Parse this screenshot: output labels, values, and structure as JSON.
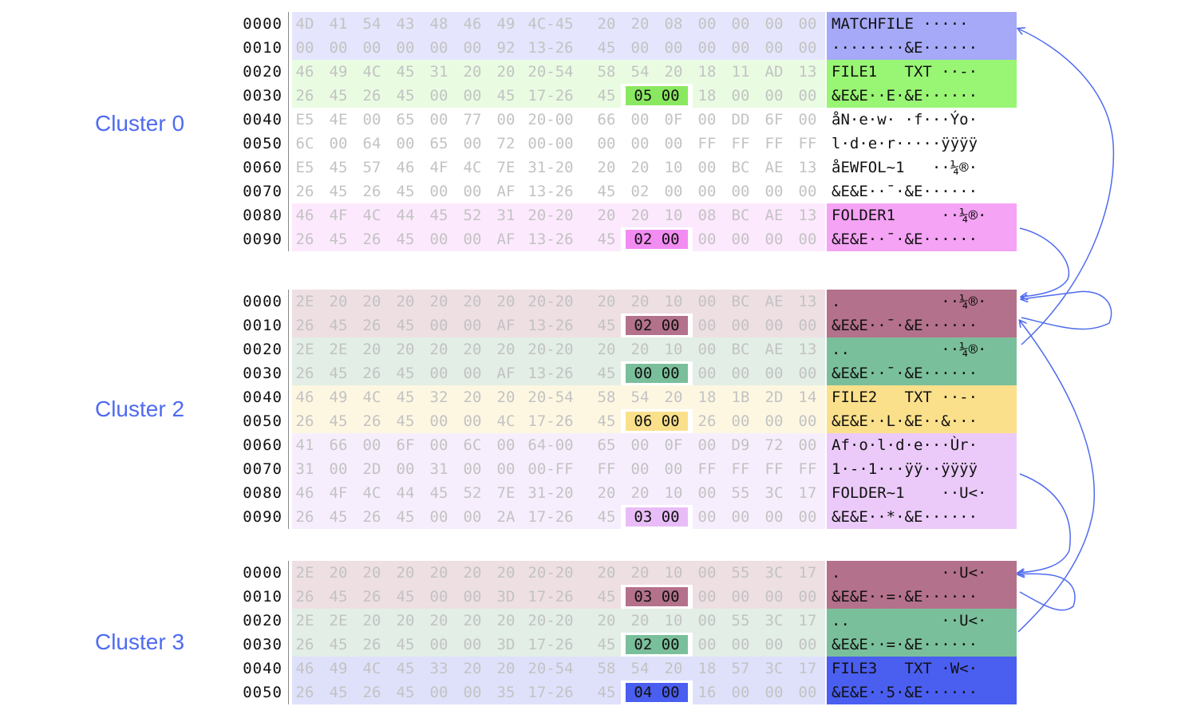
{
  "clusters": [
    {
      "label": "Cluster 0",
      "rows": [
        {
          "off": "0000",
          "hex": [
            "4D",
            "41",
            "54",
            "43",
            "48",
            "46",
            "49",
            "4C-45",
            "20",
            "20",
            "08",
            "00",
            "00",
            "00",
            "00"
          ],
          "ascii": "MATCHFILE ·····",
          "bg": "#e5e6fd",
          "abg": "#a5a9f7"
        },
        {
          "off": "0010",
          "hex": [
            "00",
            "00",
            "00",
            "00",
            "00",
            "00",
            "92",
            "13-26",
            "45",
            "00",
            "00",
            "00",
            "00",
            "00",
            "00"
          ],
          "ascii": "········&E······",
          "bg": "#e5e6fd",
          "abg": "#a5a9f7"
        },
        {
          "off": "0020",
          "hex": [
            "46",
            "49",
            "4C",
            "45",
            "31",
            "20",
            "20",
            "20-54",
            "58",
            "54",
            "20",
            "18",
            "11",
            "AD",
            "13"
          ],
          "ascii": "FILE1   TXT ··-·",
          "bg": "#e9fce2",
          "abg": "#99f574"
        },
        {
          "off": "0030",
          "hex": [
            "26",
            "45",
            "26",
            "45",
            "00",
            "00",
            "45",
            "17-26",
            "45",
            "05",
            "00",
            "18",
            "00",
            "00",
            "00"
          ],
          "ascii": "&E&E··E·&E······",
          "bg": "#e9fce2",
          "abg": "#99f574",
          "hl": {
            "text": "05 00",
            "color": "#8ae860"
          }
        },
        {
          "off": "0040",
          "hex": [
            "E5",
            "4E",
            "00",
            "65",
            "00",
            "77",
            "00",
            "20-00",
            "66",
            "00",
            "0F",
            "00",
            "DD",
            "6F",
            "00"
          ],
          "ascii": "åN·e·w· ·f···Ýo·",
          "bg": "#ffffff",
          "abg": "#ffffff"
        },
        {
          "off": "0050",
          "hex": [
            "6C",
            "00",
            "64",
            "00",
            "65",
            "00",
            "72",
            "00-00",
            "00",
            "00",
            "00",
            "FF",
            "FF",
            "FF",
            "FF"
          ],
          "ascii": "l·d·e·r·····ÿÿÿÿ",
          "bg": "#ffffff",
          "abg": "#ffffff"
        },
        {
          "off": "0060",
          "hex": [
            "E5",
            "45",
            "57",
            "46",
            "4F",
            "4C",
            "7E",
            "31-20",
            "20",
            "20",
            "10",
            "00",
            "BC",
            "AE",
            "13"
          ],
          "ascii": "åEWFOL~1   ··¼®·",
          "bg": "#ffffff",
          "abg": "#ffffff"
        },
        {
          "off": "0070",
          "hex": [
            "26",
            "45",
            "26",
            "45",
            "00",
            "00",
            "AF",
            "13-26",
            "45",
            "02",
            "00",
            "00",
            "00",
            "00",
            "00"
          ],
          "ascii": "&E&E··¯·&E······",
          "bg": "#ffffff",
          "abg": "#ffffff"
        },
        {
          "off": "0080",
          "hex": [
            "46",
            "4F",
            "4C",
            "44",
            "45",
            "52",
            "31",
            "20-20",
            "20",
            "20",
            "10",
            "08",
            "BC",
            "AE",
            "13"
          ],
          "ascii": "FOLDER1     ··¼®·",
          "bg": "#fde9fd",
          "abg": "#f5a3f5"
        },
        {
          "off": "0090",
          "hex": [
            "26",
            "45",
            "26",
            "45",
            "00",
            "00",
            "AF",
            "13-26",
            "45",
            "02",
            "00",
            "00",
            "00",
            "00",
            "00"
          ],
          "ascii": "&E&E··¯·&E······",
          "bg": "#fde9fd",
          "abg": "#f5a3f5",
          "hl": {
            "text": "02 00",
            "color": "#f28cf2"
          }
        }
      ]
    },
    {
      "label": "Cluster 2",
      "rows": [
        {
          "off": "0000",
          "hex": [
            "2E",
            "20",
            "20",
            "20",
            "20",
            "20",
            "20",
            "20-20",
            "20",
            "20",
            "10",
            "00",
            "BC",
            "AE",
            "13"
          ],
          "ascii": ".           ··¼®·",
          "bg": "#eedfe3",
          "abg": "#b4718b"
        },
        {
          "off": "0010",
          "hex": [
            "26",
            "45",
            "26",
            "45",
            "00",
            "00",
            "AF",
            "13-26",
            "45",
            "02",
            "00",
            "00",
            "00",
            "00",
            "00"
          ],
          "ascii": "&E&E··¯·&E······",
          "bg": "#eedfe3",
          "abg": "#b4718b",
          "hl": {
            "text": "02 00",
            "color": "#b4718b"
          }
        },
        {
          "off": "0020",
          "hex": [
            "2E",
            "2E",
            "20",
            "20",
            "20",
            "20",
            "20",
            "20-20",
            "20",
            "20",
            "10",
            "00",
            "BC",
            "AE",
            "13"
          ],
          "ascii": "..          ··¼®·",
          "bg": "#e2eee6",
          "abg": "#7abf9b"
        },
        {
          "off": "0030",
          "hex": [
            "26",
            "45",
            "26",
            "45",
            "00",
            "00",
            "AF",
            "13-26",
            "45",
            "00",
            "00",
            "00",
            "00",
            "00",
            "00"
          ],
          "ascii": "&E&E··¯·&E······",
          "bg": "#e2eee6",
          "abg": "#7abf9b",
          "hl": {
            "text": "00 00",
            "color": "#7abf9b"
          }
        },
        {
          "off": "0040",
          "hex": [
            "46",
            "49",
            "4C",
            "45",
            "32",
            "20",
            "20",
            "20-54",
            "58",
            "54",
            "20",
            "18",
            "1B",
            "2D",
            "14"
          ],
          "ascii": "FILE2   TXT ··-·",
          "bg": "#fdf7e2",
          "abg": "#fbe08b"
        },
        {
          "off": "0050",
          "hex": [
            "26",
            "45",
            "26",
            "45",
            "00",
            "00",
            "4C",
            "17-26",
            "45",
            "06",
            "00",
            "26",
            "00",
            "00",
            "00"
          ],
          "ascii": "&E&E··L·&E··&···",
          "bg": "#fdf7e2",
          "abg": "#fbe08b",
          "hl": {
            "text": "06 00",
            "color": "#fbe08b"
          }
        },
        {
          "off": "0060",
          "hex": [
            "41",
            "66",
            "00",
            "6F",
            "00",
            "6C",
            "00",
            "64-00",
            "65",
            "00",
            "0F",
            "00",
            "D9",
            "72",
            "00"
          ],
          "ascii": "Af·o·l·d·e···Ùr·",
          "bg": "#f7eefd",
          "abg": "#ebcaf9"
        },
        {
          "off": "0070",
          "hex": [
            "31",
            "00",
            "2D",
            "00",
            "31",
            "00",
            "00",
            "00-FF",
            "FF",
            "00",
            "00",
            "FF",
            "FF",
            "FF",
            "FF"
          ],
          "ascii": "1·-·1···ÿÿ··ÿÿÿÿ",
          "bg": "#f7eefd",
          "abg": "#ebcaf9"
        },
        {
          "off": "0080",
          "hex": [
            "46",
            "4F",
            "4C",
            "44",
            "45",
            "52",
            "7E",
            "31-20",
            "20",
            "20",
            "10",
            "00",
            "55",
            "3C",
            "17"
          ],
          "ascii": "FOLDER~1    ··U<·",
          "bg": "#f7eefd",
          "abg": "#ebcaf9"
        },
        {
          "off": "0090",
          "hex": [
            "26",
            "45",
            "26",
            "45",
            "00",
            "00",
            "2A",
            "17-26",
            "45",
            "03",
            "00",
            "00",
            "00",
            "00",
            "00"
          ],
          "ascii": "&E&E··*·&E······",
          "bg": "#f7eefd",
          "abg": "#ebcaf9",
          "hl": {
            "text": "03 00",
            "color": "#e8bdf7"
          }
        }
      ]
    },
    {
      "label": "Cluster 3",
      "rows": [
        {
          "off": "0000",
          "hex": [
            "2E",
            "20",
            "20",
            "20",
            "20",
            "20",
            "20",
            "20-20",
            "20",
            "20",
            "10",
            "00",
            "55",
            "3C",
            "17"
          ],
          "ascii": ".           ··U<·",
          "bg": "#eedfe3",
          "abg": "#b4718b"
        },
        {
          "off": "0010",
          "hex": [
            "26",
            "45",
            "26",
            "45",
            "00",
            "00",
            "3D",
            "17-26",
            "45",
            "03",
            "00",
            "00",
            "00",
            "00",
            "00"
          ],
          "ascii": "&E&E··=·&E······",
          "bg": "#eedfe3",
          "abg": "#b4718b",
          "hl": {
            "text": "03 00",
            "color": "#b4718b"
          }
        },
        {
          "off": "0020",
          "hex": [
            "2E",
            "2E",
            "20",
            "20",
            "20",
            "20",
            "20",
            "20-20",
            "20",
            "20",
            "10",
            "00",
            "55",
            "3C",
            "17"
          ],
          "ascii": "..          ··U<·",
          "bg": "#e2eee6",
          "abg": "#7abf9b"
        },
        {
          "off": "0030",
          "hex": [
            "26",
            "45",
            "26",
            "45",
            "00",
            "00",
            "3D",
            "17-26",
            "45",
            "02",
            "00",
            "00",
            "00",
            "00",
            "00"
          ],
          "ascii": "&E&E··=·&E······",
          "bg": "#e2eee6",
          "abg": "#7abf9b",
          "hl": {
            "text": "02 00",
            "color": "#7abf9b"
          }
        },
        {
          "off": "0040",
          "hex": [
            "46",
            "49",
            "4C",
            "45",
            "33",
            "20",
            "20",
            "20-54",
            "58",
            "54",
            "20",
            "18",
            "57",
            "3C",
            "17"
          ],
          "ascii": "FILE3   TXT ·W<·",
          "bg": "#dfe1fb",
          "abg": "#4a5ef0"
        },
        {
          "off": "0050",
          "hex": [
            "26",
            "45",
            "26",
            "45",
            "00",
            "00",
            "35",
            "17-26",
            "45",
            "04",
            "00",
            "16",
            "00",
            "00",
            "00"
          ],
          "ascii": "&E&E··5·&E······",
          "bg": "#dfe1fb",
          "abg": "#4a5ef0",
          "hl": {
            "text": "04 00",
            "color": "#4a5ef0"
          }
        }
      ]
    }
  ],
  "colors": {
    "arrow": "#4f6bef",
    "label": "#4f6bef"
  }
}
